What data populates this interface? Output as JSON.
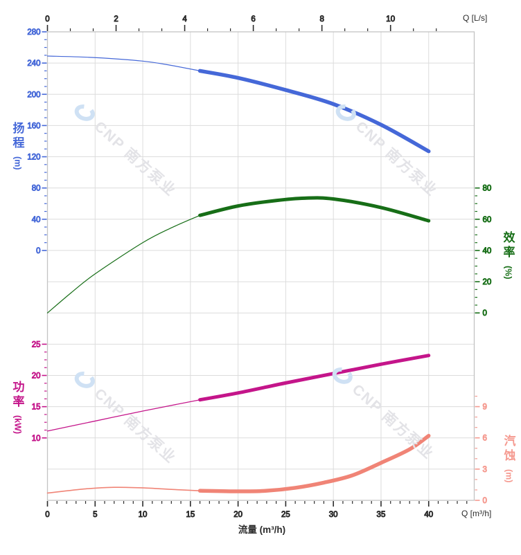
{
  "watermark": {
    "text": "CNP 南方泵业",
    "text_color": "#e3e3e7",
    "logo_color": "#cfe1f4"
  },
  "chart_data": {
    "type": "line",
    "description": "Pump performance curves: head, efficiency, power and NPSH versus flow rate",
    "plot": {
      "grid": true,
      "x_min_m3h": 0,
      "x_max_m3h": 44.8,
      "grid_color": "#dcdcdc",
      "border_color": "#c3c3c3"
    },
    "axes": {
      "top": {
        "unit": "Q [L/s]",
        "ticks": [
          0,
          2,
          4,
          6,
          8,
          10
        ],
        "minor_per_major": 3,
        "color": "#2b2b2b"
      },
      "bottom": {
        "unit": "Q [m³/h]",
        "title": "流量 (m³/h)",
        "ticks": [
          0,
          5,
          10,
          15,
          20,
          25,
          30,
          35,
          40
        ],
        "minor_step": 1,
        "minor_max": 44,
        "color": "#2b2b2b"
      },
      "head": {
        "label": "扬程",
        "unit": "(m)",
        "side": "left",
        "color": "#4568d8",
        "min": 0,
        "max": 280,
        "ticks": [
          280,
          240,
          200,
          160,
          120,
          80,
          40,
          0
        ],
        "minor_step": 10
      },
      "efficiency": {
        "label": "效率",
        "unit": "(%)",
        "side": "right",
        "color": "#176e17",
        "min": 0,
        "max": 80,
        "ticks": [
          80,
          60,
          40,
          20,
          0
        ],
        "minor_step": 5
      },
      "power": {
        "label": "功率",
        "unit": "(kW)",
        "side": "left",
        "color": "#c4158a",
        "min": 10,
        "max": 25,
        "ticks": [
          25,
          20,
          15,
          10
        ],
        "minor_step": 1.25
      },
      "npsh": {
        "label": "汽蚀",
        "unit": "(m)",
        "side": "right",
        "color": "#f59a90",
        "min": 0,
        "max": 9,
        "ticks": [
          9,
          6,
          3,
          0
        ],
        "minor_step": 1,
        "minor_max": 10
      }
    },
    "series": [
      {
        "name": "head",
        "axis": "head",
        "color": "#4568d8",
        "thin_width": 1.2,
        "thick_width": 5.5,
        "thick_from": 16,
        "points": [
          [
            0,
            249
          ],
          [
            5,
            247
          ],
          [
            10,
            242.5
          ],
          [
            13,
            237
          ],
          [
            16,
            230
          ],
          [
            20,
            221
          ],
          [
            25,
            205.5
          ],
          [
            30,
            187.5
          ],
          [
            35,
            161
          ],
          [
            40,
            127
          ]
        ]
      },
      {
        "name": "efficiency",
        "axis": "efficiency",
        "color": "#176e17",
        "thin_width": 1.2,
        "thick_width": 5,
        "thick_from": 16,
        "points": [
          [
            0,
            0
          ],
          [
            2.5,
            13
          ],
          [
            5,
            25
          ],
          [
            10,
            45
          ],
          [
            13,
            54.5
          ],
          [
            16,
            62.5
          ],
          [
            20,
            68.5
          ],
          [
            24,
            72
          ],
          [
            27,
            73.5
          ],
          [
            30,
            73
          ],
          [
            35,
            67.5
          ],
          [
            40,
            59
          ]
        ]
      },
      {
        "name": "power",
        "axis": "power",
        "color": "#c4158a",
        "thin_width": 1.3,
        "thick_width": 5,
        "thick_from": 16,
        "points": [
          [
            0,
            11.1
          ],
          [
            5,
            12.7
          ],
          [
            10,
            14.3
          ],
          [
            16,
            16.1
          ],
          [
            20,
            17.2
          ],
          [
            25,
            18.8
          ],
          [
            30,
            20.3
          ],
          [
            35,
            21.8
          ],
          [
            40,
            23.2
          ]
        ]
      },
      {
        "name": "npsh",
        "axis": "npsh",
        "color": "#f08476",
        "thin_width": 1.6,
        "thick_width": 5.5,
        "thick_from": 16,
        "points": [
          [
            0,
            0.7
          ],
          [
            4,
            1.1
          ],
          [
            7,
            1.25
          ],
          [
            10,
            1.2
          ],
          [
            13,
            1.05
          ],
          [
            16,
            0.92
          ],
          [
            20,
            0.86
          ],
          [
            23,
            0.92
          ],
          [
            26,
            1.2
          ],
          [
            29,
            1.7
          ],
          [
            32,
            2.4
          ],
          [
            35,
            3.6
          ],
          [
            38,
            4.9
          ],
          [
            40,
            6.2
          ]
        ]
      }
    ]
  }
}
